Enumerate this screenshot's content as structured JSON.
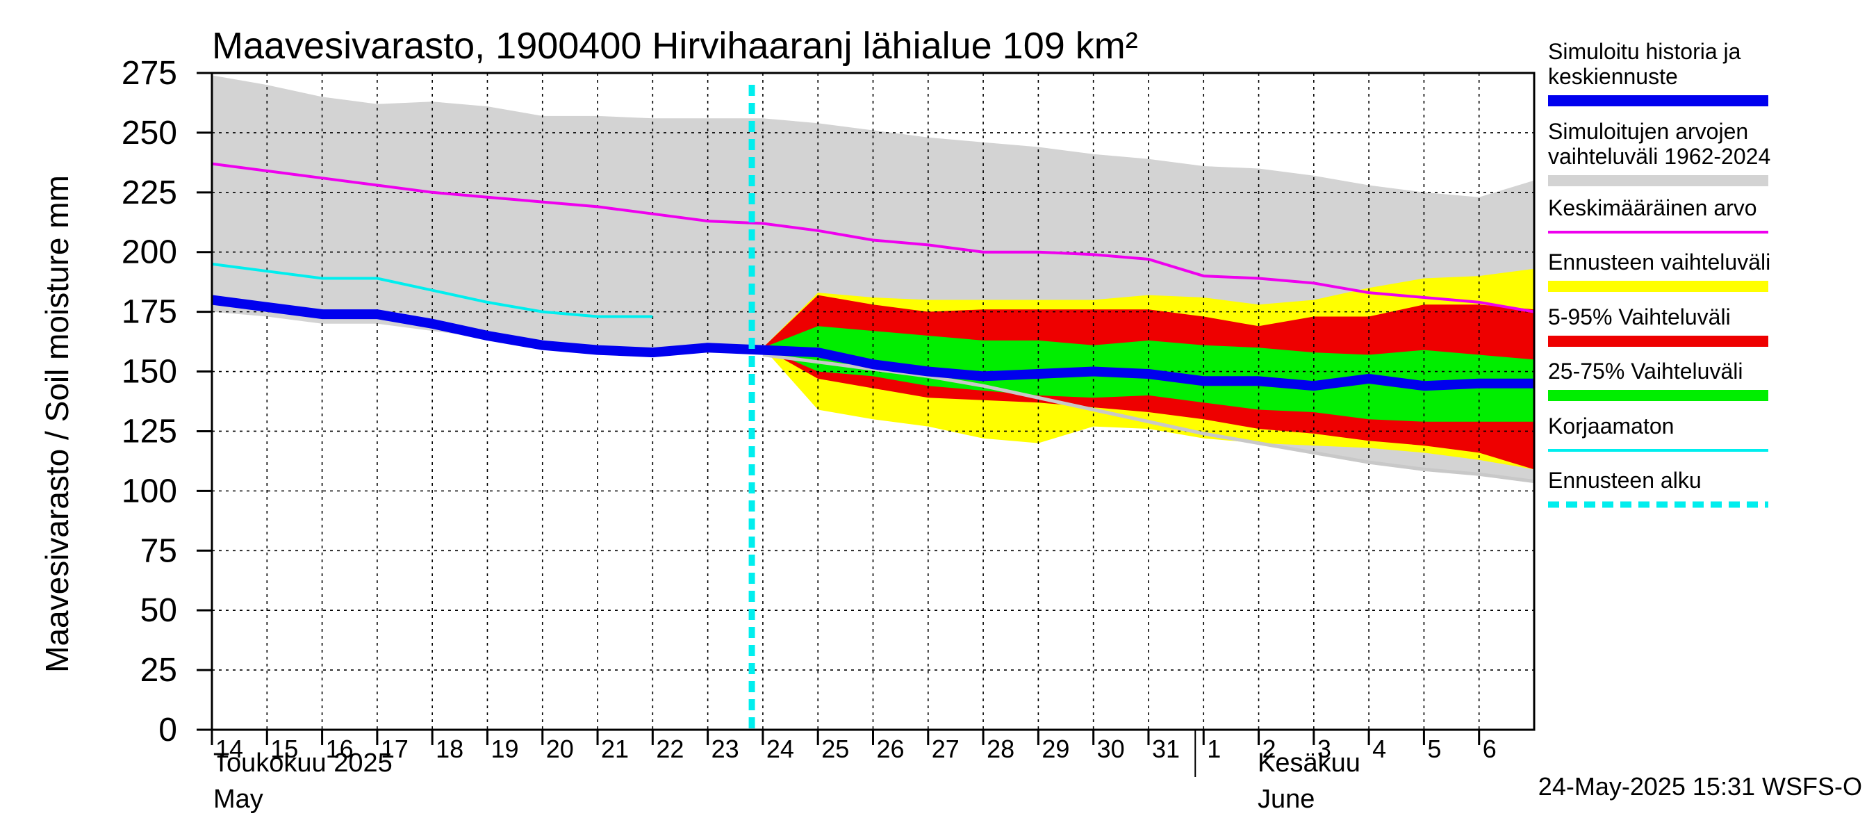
{
  "chart_data": {
    "type": "area",
    "title": "Maavesivarasto, 1900400 Hirvihaaranj lähialue 109 km²",
    "ylabel": "Maavesivarasto / Soil moisture   mm",
    "ylim": [
      0,
      275
    ],
    "yticks": [
      0,
      25,
      50,
      75,
      100,
      125,
      150,
      175,
      200,
      225,
      250,
      275
    ],
    "grid": true,
    "x_start_day": 14,
    "day_labels": [
      "14",
      "15",
      "16",
      "17",
      "18",
      "19",
      "20",
      "21",
      "22",
      "23",
      "24",
      "25",
      "26",
      "27",
      "28",
      "29",
      "30",
      "31",
      "1",
      "2",
      "3",
      "4",
      "5",
      "6"
    ],
    "month_labels": [
      {
        "fi": "Toukokuu  2025",
        "en": "May"
      },
      {
        "fi": "Kesäkuu",
        "en": "June"
      }
    ],
    "forecast_start_day": 23.8,
    "timestamp": "24-May-2025 15:31 WSFS-O",
    "series": {
      "history_range_upper": {
        "x": [
          14,
          15,
          16,
          17,
          18,
          19,
          20,
          21,
          22,
          23,
          24,
          25,
          26,
          27,
          28,
          29,
          30,
          31,
          32,
          33,
          34,
          35,
          36,
          37,
          38
        ],
        "values": [
          274,
          270,
          265,
          262,
          263,
          261,
          257,
          257,
          256,
          256,
          256,
          254,
          251,
          248,
          246,
          244,
          241,
          239,
          236,
          235,
          232,
          228,
          225,
          223,
          230
        ]
      },
      "history_range_lower": {
        "x": [
          14,
          15,
          16,
          17,
          18,
          19,
          20,
          21,
          22,
          23,
          24,
          25,
          26,
          27,
          28,
          29,
          30,
          31,
          32,
          33,
          34,
          35,
          36,
          37,
          38
        ],
        "values": [
          175,
          173,
          170,
          170,
          167,
          164,
          161,
          158,
          157,
          159,
          157,
          154,
          151,
          148,
          144,
          139,
          134,
          129,
          124,
          120,
          116,
          112,
          109,
          107,
          104
        ]
      },
      "mean": {
        "name": "Keskimääräinen arvo",
        "x": [
          14,
          15,
          16,
          17,
          18,
          19,
          20,
          21,
          22,
          23,
          24,
          25,
          26,
          27,
          28,
          29,
          30,
          31,
          32,
          33,
          34,
          35,
          36,
          37,
          38
        ],
        "values": [
          237,
          234,
          231,
          228,
          225,
          223,
          221,
          219,
          216,
          213,
          212,
          209,
          205,
          203,
          200,
          200,
          199,
          197,
          190,
          189,
          187,
          183,
          181,
          179,
          175
        ]
      },
      "uncorrected": {
        "name": "Korjaamaton",
        "x": [
          14,
          15,
          16,
          17,
          18,
          19,
          20,
          21,
          22
        ],
        "values": [
          195,
          192,
          189,
          189,
          184,
          179,
          175,
          173,
          173
        ]
      },
      "simulated": {
        "name": "Simuloitu historia ja keskiennuste",
        "x": [
          14,
          15,
          16,
          17,
          18,
          19,
          20,
          21,
          22,
          23,
          24,
          25,
          26,
          27,
          28,
          29,
          30,
          31,
          32,
          33,
          34,
          35,
          36,
          37,
          38
        ],
        "values": [
          180,
          177,
          174,
          174,
          170,
          165,
          161,
          159,
          158,
          160,
          159,
          158,
          153,
          150,
          148,
          149,
          150,
          149,
          146,
          146,
          144,
          147,
          144,
          145,
          145
        ]
      },
      "forecast_range": {
        "name": "Ennusteen vaihteluväli",
        "x": [
          24,
          25,
          26,
          27,
          28,
          29,
          30,
          31,
          32,
          33,
          34,
          35,
          36,
          37,
          38
        ],
        "upper": [
          160,
          183,
          181,
          180,
          180,
          180,
          180,
          182,
          181,
          178,
          180,
          185,
          189,
          190,
          193
        ],
        "lower": [
          160,
          134,
          130,
          127,
          122,
          120,
          127,
          126,
          122,
          120,
          119,
          118,
          116,
          113,
          109
        ]
      },
      "p5_95": {
        "name": "5-95% Vaihteluväli",
        "x": [
          24,
          25,
          26,
          27,
          28,
          29,
          30,
          31,
          32,
          33,
          34,
          35,
          36,
          37,
          38
        ],
        "upper": [
          160,
          182,
          178,
          175,
          176,
          176,
          176,
          176,
          173,
          169,
          173,
          173,
          178,
          178,
          176
        ],
        "lower": [
          160,
          147,
          143,
          139,
          138,
          137,
          135,
          133,
          130,
          126,
          124,
          121,
          119,
          116,
          109
        ]
      },
      "p25_75": {
        "name": "25-75% Vaihteluväli",
        "x": [
          24,
          25,
          26,
          27,
          28,
          29,
          30,
          31,
          32,
          33,
          34,
          35,
          36,
          37,
          38
        ],
        "upper": [
          160,
          169,
          167,
          165,
          163,
          163,
          161,
          163,
          161,
          160,
          158,
          157,
          159,
          157,
          155
        ],
        "lower": [
          160,
          150,
          148,
          144,
          142,
          140,
          139,
          140,
          137,
          134,
          133,
          130,
          129,
          129,
          129
        ]
      },
      "history_median_tail": {
        "x": [
          24,
          25,
          26,
          27,
          28,
          29,
          30,
          31,
          32,
          33,
          34,
          35,
          36,
          37,
          38
        ],
        "values": [
          157,
          154,
          151,
          148,
          144,
          139,
          134,
          129,
          124,
          120,
          116,
          112,
          109,
          107,
          104
        ]
      }
    },
    "legend": [
      {
        "label_lines": [
          "Simuloitu historia ja",
          "keskiennuste"
        ],
        "color": "#0000ee",
        "style": "thick"
      },
      {
        "label_lines": [
          "Simuloitujen arvojen",
          "vaihteluväli 1962-2024"
        ],
        "color": "#d3d3d3",
        "style": "band"
      },
      {
        "label_lines": [
          "Keskimääräinen arvo"
        ],
        "color": "#ee00ee",
        "style": "line"
      },
      {
        "label_lines": [
          "Ennusteen vaihteluväli"
        ],
        "color": "#ffff00",
        "style": "band"
      },
      {
        "label_lines": [
          "5-95% Vaihteluväli"
        ],
        "color": "#ee0000",
        "style": "band"
      },
      {
        "label_lines": [
          "25-75% Vaihteluväli"
        ],
        "color": "#00ee00",
        "style": "band"
      },
      {
        "label_lines": [
          "Korjaamaton"
        ],
        "color": "#00eeee",
        "style": "line"
      },
      {
        "label_lines": [
          "Ennusteen alku"
        ],
        "color": "#00eeee",
        "style": "dashed"
      }
    ],
    "colors": {
      "gray": "#d3d3d3",
      "yellow": "#ffff00",
      "red": "#ee0000",
      "green": "#00ee00",
      "blue": "#0000ee",
      "magenta": "#ee00ee",
      "cyan": "#00eeee",
      "median_tail": "#c8c8c8"
    }
  }
}
